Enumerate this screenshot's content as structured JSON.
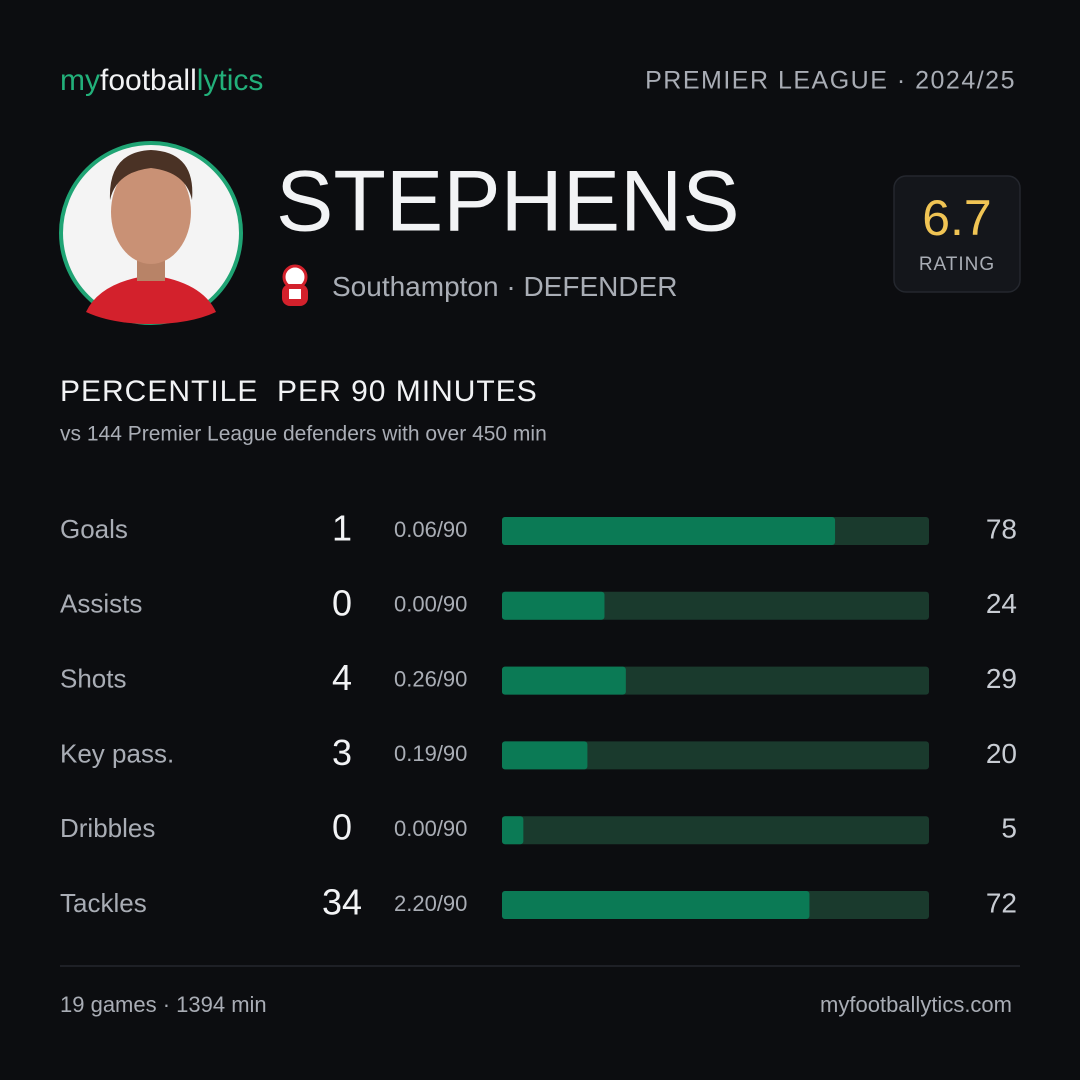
{
  "brand": {
    "parts": [
      "my",
      "football",
      "lytics"
    ]
  },
  "header": {
    "league": "PREMIER LEAGUE · 2024/25"
  },
  "player": {
    "name": "STEPHENS",
    "club": "Southampton",
    "position": "· DEFENDER"
  },
  "rating": {
    "value": 6.7,
    "label": "RATING"
  },
  "section": {
    "title": "PERCENTILE  PER 90 MINUTES",
    "subtitle": "vs 144 Premier League defenders with over 450 min"
  },
  "stats": {
    "xlim": [
      0,
      100
    ],
    "fill_color": "#0b7a55",
    "track_color": "#1a3a2d",
    "rows": [
      {
        "label": "Goals",
        "total": 1,
        "per90": "0.06/90",
        "percentile": 78
      },
      {
        "label": "Assists",
        "total": 0,
        "per90": "0.00/90",
        "percentile": 24
      },
      {
        "label": "Shots",
        "total": 4,
        "per90": "0.26/90",
        "percentile": 29
      },
      {
        "label": "Key pass.",
        "total": 3,
        "per90": "0.19/90",
        "percentile": 20
      },
      {
        "label": "Dribbles",
        "total": 0,
        "per90": "0.00/90",
        "percentile": 5
      },
      {
        "label": "Tackles",
        "total": 34,
        "per90": "2.20/90",
        "percentile": 72
      }
    ]
  },
  "footer": {
    "left": "19 games · 1394 min",
    "right": "myfootballytics.com"
  }
}
